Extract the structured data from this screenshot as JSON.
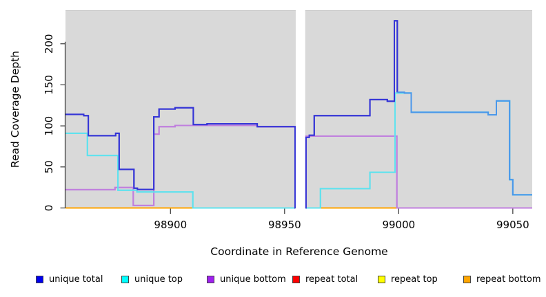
{
  "axes": {
    "y": {
      "title": "Read Coverage Depth",
      "ticks": [
        0,
        50,
        100,
        150,
        200
      ]
    },
    "x": {
      "title": "Coordinate in Reference Genome",
      "ticks": [
        98900,
        98950,
        99000,
        99050
      ]
    }
  },
  "legend": {
    "items": [
      {
        "label": "unique total",
        "color": "#0000EE"
      },
      {
        "label": "unique top",
        "color": "#00FFFF"
      },
      {
        "label": "unique bottom",
        "color": "#A020F0"
      },
      {
        "label": "repeat total",
        "color": "#FF0000"
      },
      {
        "label": "repeat top",
        "color": "#FFFF00"
      },
      {
        "label": "repeat bottom",
        "color": "#FFA500"
      }
    ]
  },
  "colors": {
    "panel": "#D9D9D9",
    "panel_top_edge": "#C4C4C4",
    "gap": "#FFFFFF",
    "axis": "#333333",
    "line_blue_dark": "#3434D6",
    "line_blue_light": "#4A97EA",
    "line_cyan": "#5FE2EE",
    "line_purple": "#C07FDE",
    "zero_orange": "#FFA500",
    "zero_green": "#7CC47C",
    "zero_pink": "#DD5F8D"
  },
  "chart_data": {
    "type": "line",
    "title": "",
    "xlabel": "Coordinate in Reference Genome",
    "ylabel": "Read Coverage Depth",
    "xlim": [
      98854,
      99058.5
    ],
    "ylim": [
      0,
      238.3
    ],
    "grid": false,
    "legend_position": "bottom",
    "gap_x": [
      98954.7,
      98959.2
    ],
    "series": [
      {
        "name": "repeat total",
        "legend_color": "#FF0000",
        "paths": [
          {
            "color": "#FF0000",
            "points": [
              [
                98854,
                0
              ],
              [
                98954.7,
                0
              ]
            ]
          },
          {
            "color": "#FF0000",
            "points": [
              [
                98959.2,
                0
              ],
              [
                99058.5,
                0
              ]
            ]
          }
        ]
      },
      {
        "name": "repeat top",
        "legend_color": "#FFFF00",
        "paths": [
          {
            "color": "#FFFF00",
            "points": [
              [
                98854,
                0
              ],
              [
                98954.7,
                0
              ]
            ]
          },
          {
            "color": "#FFFF00",
            "points": [
              [
                98959.2,
                0
              ],
              [
                99058.5,
                0
              ]
            ]
          }
        ]
      },
      {
        "name": "repeat bottom",
        "legend_color": "#FFA500",
        "paths": [
          {
            "color": "#FFA500",
            "points": [
              [
                98854,
                0
              ],
              [
                98954.7,
                0
              ]
            ]
          },
          {
            "color": "#FFA500",
            "points": [
              [
                98959.2,
                0
              ],
              [
                99058.5,
                0
              ]
            ]
          }
        ]
      },
      {
        "name": "unique bottom",
        "legend_color": "#A020F0",
        "paths": [
          {
            "color": "#C07FDE",
            "points": [
              [
                98854,
                22.3
              ],
              [
                98875.7,
                25
              ],
              [
                98883.7,
                3
              ],
              [
                98892.7,
                90
              ],
              [
                98895,
                99
              ],
              [
                98902,
                100.5
              ],
              [
                98938,
                99
              ],
              [
                98954.6,
                0
              ],
              [
                98954.7,
                0
              ]
            ]
          },
          {
            "color": "#C07FDE",
            "points": [
              [
                98959.2,
                0
              ],
              [
                98959.4,
                87.5
              ],
              [
                98999.2,
                0
              ],
              [
                99058.5,
                0
              ]
            ]
          }
        ]
      },
      {
        "name": "unique top",
        "legend_color": "#00FFFF",
        "paths": [
          {
            "color": "#5FE2EE",
            "points": [
              [
                98854,
                91
              ],
              [
                98863.6,
                64
              ],
              [
                98877,
                21.5
              ],
              [
                98885.3,
                19.5
              ],
              [
                98909.8,
                0
              ],
              [
                98954.7,
                0
              ]
            ]
          },
          {
            "color": "#5FE2EE",
            "points": [
              [
                98959.2,
                0
              ],
              [
                98965.7,
                23.5
              ],
              [
                98987.4,
                43.5
              ],
              [
                98998.4,
                140
              ],
              [
                99005.5,
                116.5
              ],
              [
                99039.2,
                113.5
              ],
              [
                99042.8,
                130.5
              ],
              [
                99048.6,
                34.5
              ],
              [
                99050,
                16
              ],
              [
                99058.5,
                16
              ]
            ]
          }
        ]
      },
      {
        "name": "unique total",
        "legend_color": "#0000EE",
        "paths": [
          {
            "color": "#3434D6",
            "points": [
              [
                98854,
                114
              ],
              [
                98862,
                112.5
              ],
              [
                98864,
                88
              ],
              [
                98876,
                91
              ],
              [
                98877.5,
                47
              ],
              [
                98884,
                24
              ],
              [
                98885.5,
                22.5
              ],
              [
                98892.7,
                111
              ],
              [
                98895,
                120.5
              ],
              [
                98902,
                122
              ],
              [
                98910,
                101.5
              ],
              [
                98916,
                102.5
              ],
              [
                98938,
                99
              ],
              [
                98954.6,
                0
              ],
              [
                98954.7,
                0
              ]
            ]
          },
          {
            "color": "#3434D6",
            "points": [
              [
                98959.2,
                0
              ],
              [
                98959.4,
                86
              ],
              [
                98960.8,
                88.5
              ],
              [
                98963,
                112.5
              ],
              [
                98987.4,
                132
              ],
              [
                98995,
                130
              ],
              [
                98998.1,
                228
              ],
              [
                98999.4,
                141
              ]
            ]
          },
          {
            "color": "#4A97EA",
            "points": [
              [
                98999.4,
                141
              ],
              [
                99002.5,
                140
              ],
              [
                99005.5,
                116.5
              ],
              [
                99039.2,
                113.5
              ],
              [
                99042.8,
                130.5
              ],
              [
                99048.6,
                34.5
              ],
              [
                99050,
                16
              ],
              [
                99058.5,
                16
              ]
            ]
          }
        ]
      }
    ],
    "zero_overlay": [
      {
        "color": "#FFA500",
        "points": [
          [
            98854,
            0
          ],
          [
            98909.8,
            0
          ]
        ]
      },
      {
        "color": "#7CC47C",
        "points": [
          [
            98909.8,
            0
          ],
          [
            98954.7,
            0
          ]
        ]
      },
      {
        "color": "#7CC47C",
        "points": [
          [
            98959.2,
            0
          ],
          [
            98965.7,
            0
          ]
        ]
      },
      {
        "color": "#FFA500",
        "points": [
          [
            98965.7,
            0
          ],
          [
            98999.2,
            0
          ]
        ]
      },
      {
        "color": "#DD5F8D",
        "points": [
          [
            98999.2,
            0
          ],
          [
            99058.5,
            0
          ]
        ]
      }
    ]
  }
}
